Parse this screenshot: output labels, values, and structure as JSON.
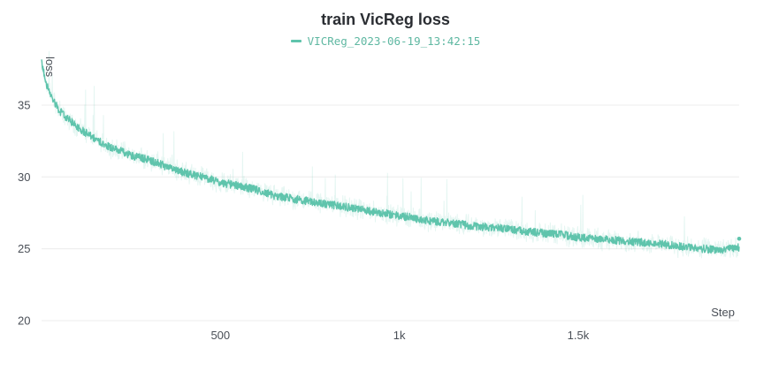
{
  "chart_data": {
    "type": "line",
    "title": "train VicReg loss",
    "xlabel": "Step",
    "ylabel": "loss",
    "xlim": [
      0,
      1950
    ],
    "ylim": [
      20,
      38.5
    ],
    "xticks": [
      500,
      1000,
      1500
    ],
    "xtick_labels": [
      "500",
      "1k",
      "1.5k"
    ],
    "yticks": [
      20,
      25,
      30,
      35
    ],
    "ytick_labels": [
      "20",
      "25",
      "30",
      "35"
    ],
    "grid": true,
    "legend_position": "top-center",
    "series": [
      {
        "name": "VICReg_2023-06-19_13:42:15",
        "color": "#5fc4ac",
        "smoothed_points": [
          [
            0,
            37.9
          ],
          [
            15,
            36.4
          ],
          [
            30,
            35.5
          ],
          [
            50,
            34.6
          ],
          [
            75,
            34.0
          ],
          [
            100,
            33.5
          ],
          [
            150,
            32.6
          ],
          [
            200,
            32.0
          ],
          [
            250,
            31.5
          ],
          [
            300,
            31.2
          ],
          [
            350,
            30.7
          ],
          [
            400,
            30.3
          ],
          [
            450,
            30.0
          ],
          [
            500,
            29.6
          ],
          [
            550,
            29.4
          ],
          [
            600,
            29.1
          ],
          [
            650,
            28.7
          ],
          [
            700,
            28.5
          ],
          [
            750,
            28.3
          ],
          [
            800,
            28.1
          ],
          [
            850,
            27.9
          ],
          [
            900,
            27.7
          ],
          [
            950,
            27.5
          ],
          [
            1000,
            27.3
          ],
          [
            1050,
            27.1
          ],
          [
            1100,
            26.9
          ],
          [
            1150,
            26.8
          ],
          [
            1200,
            26.6
          ],
          [
            1250,
            26.5
          ],
          [
            1300,
            26.4
          ],
          [
            1350,
            26.2
          ],
          [
            1400,
            26.1
          ],
          [
            1450,
            26.0
          ],
          [
            1500,
            25.8
          ],
          [
            1550,
            25.7
          ],
          [
            1600,
            25.6
          ],
          [
            1650,
            25.5
          ],
          [
            1700,
            25.4
          ],
          [
            1750,
            25.3
          ],
          [
            1800,
            25.1
          ],
          [
            1850,
            25.0
          ],
          [
            1900,
            24.9
          ],
          [
            1950,
            25.1
          ]
        ],
        "last_value": 25.7
      }
    ]
  }
}
